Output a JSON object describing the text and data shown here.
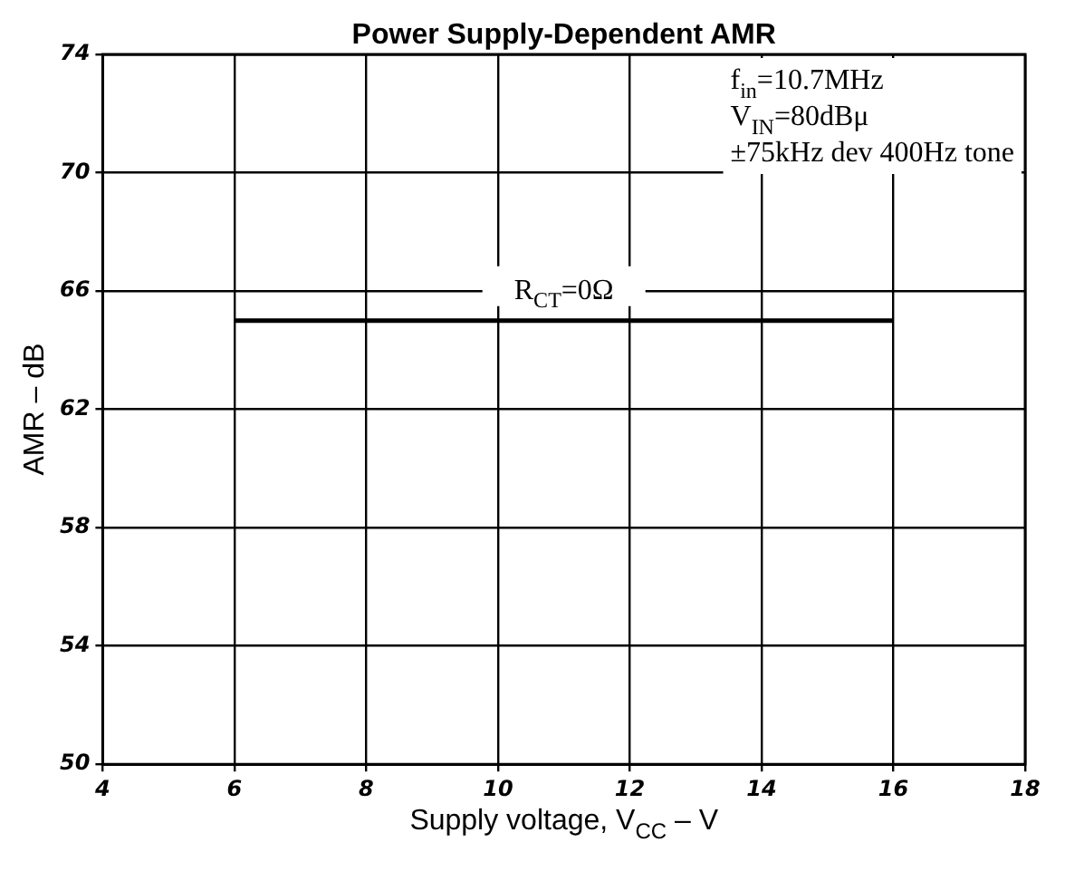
{
  "chart_data": {
    "type": "line",
    "title": "Power Supply-Dependent AMR",
    "xlabel": "Supply voltage, V$_{CC}$ – V",
    "ylabel": "AMR – dB",
    "x": [
      6,
      16
    ],
    "series": [
      {
        "name": "R$_{CT}$=0Ω",
        "color": "#000000",
        "values": [
          65,
          65
        ]
      }
    ],
    "xlim": [
      4,
      18
    ],
    "xticks": [
      4,
      6,
      8,
      10,
      12,
      14,
      16,
      18
    ],
    "ylim": [
      50,
      74
    ],
    "yticks": [
      50,
      54,
      58,
      62,
      66,
      70,
      74
    ],
    "annotations": [
      "f$_{in}$=10.7MHz",
      "V$_{IN}$=80dBμ",
      "±75kHz dev 400Hz tone"
    ],
    "grid": true,
    "legend": false,
    "marker": "none",
    "line_style": "solid"
  }
}
